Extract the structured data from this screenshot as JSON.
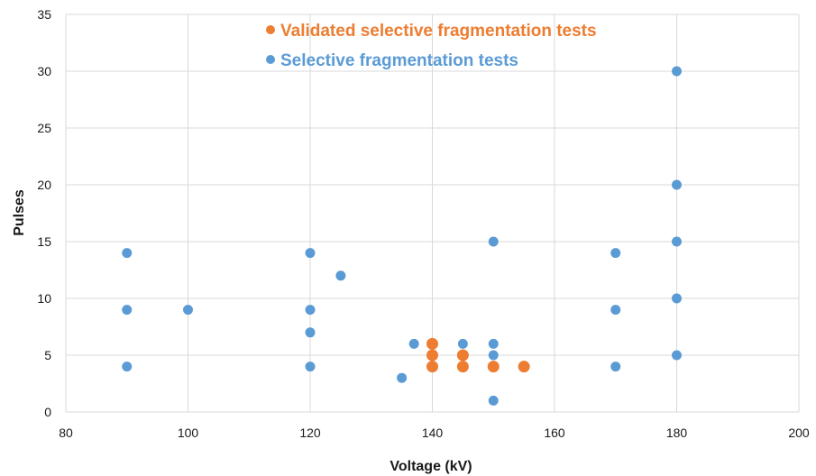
{
  "chart_data": {
    "type": "scatter",
    "xlabel": "Voltage (kV)",
    "ylabel": "Pulses",
    "xlim": [
      80,
      200
    ],
    "ylim": [
      0,
      35
    ],
    "x_ticks": [
      80,
      100,
      120,
      140,
      160,
      180,
      200
    ],
    "y_ticks": [
      0,
      5,
      10,
      15,
      20,
      25,
      30,
      35
    ],
    "grid": true,
    "legend_position": "top-center",
    "series": [
      {
        "name": "Validated selective fragmentation tests",
        "color": "#ED7D31",
        "points": [
          {
            "x": 140,
            "y": 6
          },
          {
            "x": 140,
            "y": 5
          },
          {
            "x": 140,
            "y": 4
          },
          {
            "x": 145,
            "y": 5
          },
          {
            "x": 145,
            "y": 4
          },
          {
            "x": 150,
            "y": 4
          },
          {
            "x": 155,
            "y": 4
          }
        ]
      },
      {
        "name": "Selective fragmentation tests",
        "color": "#5B9BD5",
        "points": [
          {
            "x": 90,
            "y": 14
          },
          {
            "x": 90,
            "y": 9
          },
          {
            "x": 90,
            "y": 4
          },
          {
            "x": 100,
            "y": 9
          },
          {
            "x": 120,
            "y": 14
          },
          {
            "x": 120,
            "y": 9
          },
          {
            "x": 120,
            "y": 7
          },
          {
            "x": 120,
            "y": 4
          },
          {
            "x": 125,
            "y": 12
          },
          {
            "x": 135,
            "y": 3
          },
          {
            "x": 137,
            "y": 6
          },
          {
            "x": 145,
            "y": 6
          },
          {
            "x": 150,
            "y": 15
          },
          {
            "x": 150,
            "y": 6
          },
          {
            "x": 150,
            "y": 5
          },
          {
            "x": 150,
            "y": 1
          },
          {
            "x": 170,
            "y": 14
          },
          {
            "x": 170,
            "y": 9
          },
          {
            "x": 170,
            "y": 4
          },
          {
            "x": 180,
            "y": 30
          },
          {
            "x": 180,
            "y": 20
          },
          {
            "x": 180,
            "y": 15
          },
          {
            "x": 180,
            "y": 10
          },
          {
            "x": 180,
            "y": 5
          }
        ]
      }
    ]
  }
}
